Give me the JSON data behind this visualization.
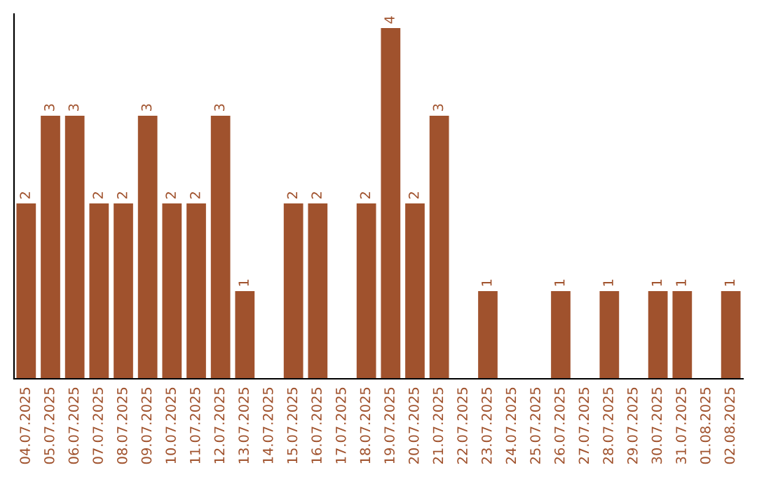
{
  "chart_data": {
    "type": "bar",
    "categories": [
      "04.07.2025",
      "05.07.2025",
      "06.07.2025",
      "07.07.2025",
      "08.07.2025",
      "09.07.2025",
      "10.07.2025",
      "11.07.2025",
      "12.07.2025",
      "13.07.2025",
      "14.07.2025",
      "15.07.2025",
      "16.07.2025",
      "17.07.2025",
      "18.07.2025",
      "19.07.2025",
      "20.07.2025",
      "21.07.2025",
      "22.07.2025",
      "23.07.2025",
      "24.07.2025",
      "25.07.2025",
      "26.07.2025",
      "27.07.2025",
      "28.07.2025",
      "29.07.2025",
      "30.07.2025",
      "31.07.2025",
      "01.08.2025",
      "02.08.2025"
    ],
    "values": [
      2,
      3,
      3,
      2,
      2,
      3,
      2,
      2,
      3,
      1,
      0,
      2,
      2,
      0,
      2,
      4,
      2,
      3,
      0,
      1,
      0,
      0,
      1,
      0,
      1,
      0,
      1,
      1,
      0,
      1
    ],
    "value_labels": [
      "2",
      "3",
      "3",
      "2",
      "2",
      "3",
      "2",
      "2",
      "3",
      "1",
      null,
      "2",
      "2",
      null,
      "2",
      "4",
      "2",
      "3",
      null,
      "1",
      null,
      null,
      "1",
      null,
      "1",
      null,
      "1",
      "1",
      null,
      "1"
    ],
    "color": "#a0522d",
    "ylim": [
      0,
      4.16
    ],
    "tick_labels": "x",
    "grid": false,
    "legend": false
  }
}
